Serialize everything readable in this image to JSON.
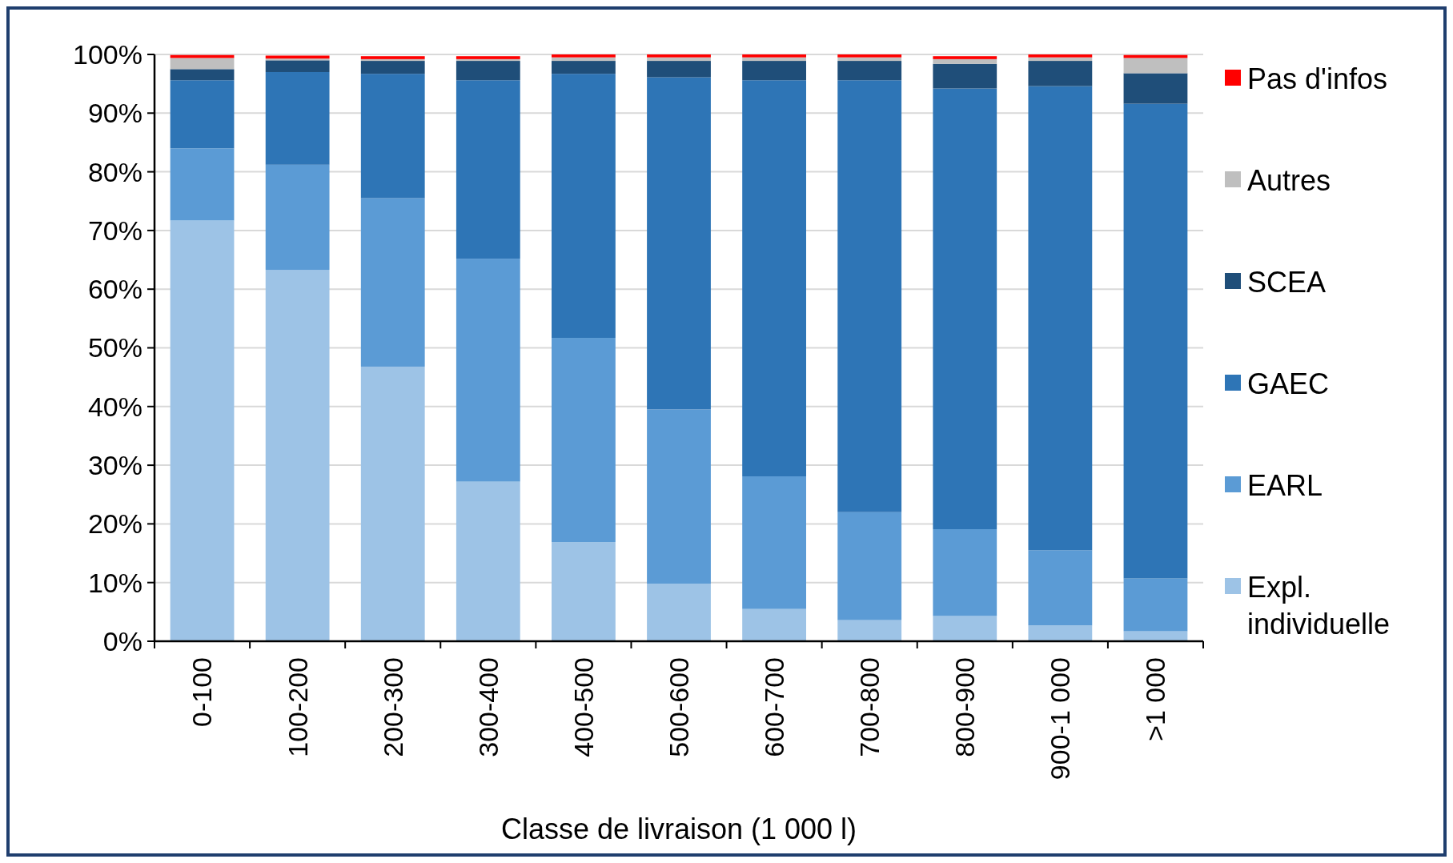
{
  "chart_data": {
    "type": "bar",
    "stacked": true,
    "xlabel": "Classe de livraison (1 000 l)",
    "categories": [
      "0-100",
      "100-200",
      "200-300",
      "300-400",
      "400-500",
      "500-600",
      "600-700",
      "700-800",
      "800-900",
      "900-1 000",
      ">1 000"
    ],
    "series": [
      {
        "name": "Expl. individuelle",
        "color": "#9dc3e6",
        "values": [
          71.7,
          63.3,
          46.8,
          27.2,
          16.9,
          9.8,
          5.5,
          3.6,
          4.3,
          2.7,
          1.7
        ]
      },
      {
        "name": "EARL",
        "color": "#5b9bd5",
        "values": [
          12.3,
          17.9,
          28.7,
          38.0,
          34.8,
          29.7,
          22.6,
          18.4,
          14.8,
          12.8,
          9.0
        ]
      },
      {
        "name": "GAEC",
        "color": "#2e75b6",
        "values": [
          11.6,
          15.8,
          21.2,
          30.4,
          45.0,
          56.6,
          67.5,
          73.6,
          75.1,
          79.1,
          80.9
        ]
      },
      {
        "name": "SCEA",
        "color": "#1f4e79",
        "values": [
          1.9,
          2.0,
          2.2,
          3.3,
          2.2,
          2.8,
          3.3,
          3.3,
          4.2,
          4.3,
          5.2
        ]
      },
      {
        "name": "Autres",
        "color": "#bfbfbf",
        "values": [
          1.9,
          0.3,
          0.3,
          0.3,
          0.6,
          0.6,
          0.6,
          0.6,
          0.8,
          0.6,
          2.6
        ]
      },
      {
        "name": "Pas d'infos",
        "color": "#ff0000",
        "values": [
          0.5,
          0.5,
          0.5,
          0.5,
          0.5,
          0.5,
          0.5,
          0.5,
          0.5,
          0.5,
          0.5
        ]
      }
    ],
    "ylim": [
      0,
      100
    ],
    "yticks": [
      {
        "value": 0,
        "label": "0%"
      },
      {
        "value": 10,
        "label": "10%"
      },
      {
        "value": 20,
        "label": "20%"
      },
      {
        "value": 30,
        "label": "30%"
      },
      {
        "value": 40,
        "label": "40%"
      },
      {
        "value": 50,
        "label": "50%"
      },
      {
        "value": 60,
        "label": "60%"
      },
      {
        "value": 70,
        "label": "70%"
      },
      {
        "value": 80,
        "label": "80%"
      },
      {
        "value": 90,
        "label": "90%"
      },
      {
        "value": 100,
        "label": "100%"
      }
    ],
    "grid": "y",
    "legend": "right"
  }
}
